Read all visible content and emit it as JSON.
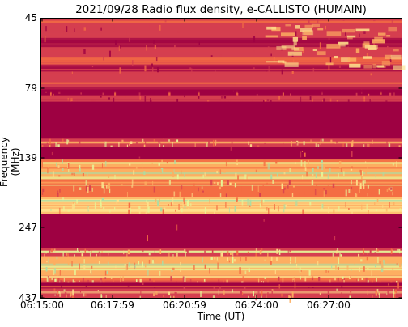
{
  "chart_data": {
    "type": "heatmap",
    "title": "2021/09/28  Radio flux density, e-CALLISTO (HUMAIN)",
    "xlabel": "Time (UT)",
    "ylabel": "Frequency (MHz)",
    "x_ticks": [
      "06:15:00",
      "06:17:59",
      "06:20:59",
      "06:24:00",
      "06:27:00"
    ],
    "y_ticks": [
      "45",
      "79",
      "139",
      "247",
      "437"
    ],
    "x_range": [
      "06:15:00",
      "06:30:15"
    ],
    "y_range": [
      45,
      437
    ],
    "y_scale": "log",
    "y_inverted": true,
    "colormap": "Spectral",
    "colors": {
      "low": "#9e0142",
      "mid_low": "#d53e4f",
      "mid": "#f46d43",
      "mid_high": "#fdae61",
      "high": "#fee08b",
      "very_high": "#e6f598",
      "peak": "#abdda4"
    },
    "features": [
      "Low-intensity RFI-free bands near 85-125 MHz and 150-250 MHz",
      "Enhanced emission patch near 50-70 MHz around 06:23-06:29 UT"
    ]
  }
}
